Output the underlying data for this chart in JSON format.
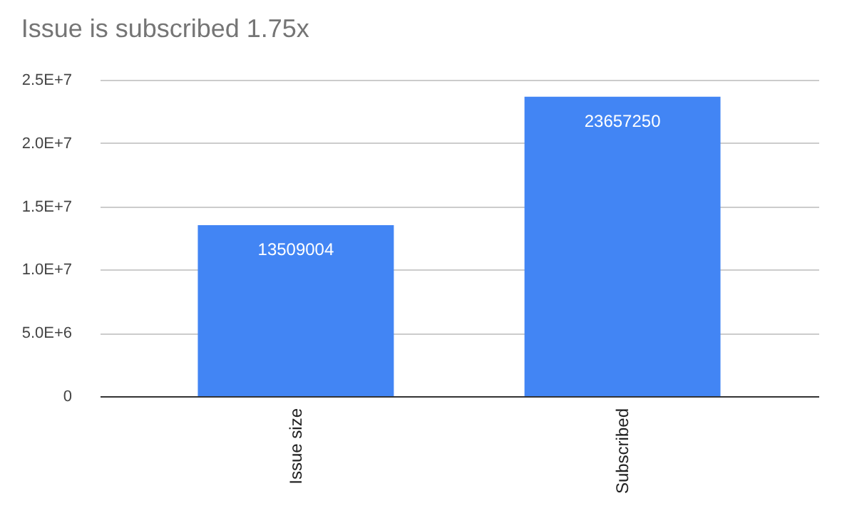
{
  "chart_data": {
    "type": "bar",
    "title": "Issue is subscribed 1.75x",
    "categories": [
      "Issue size",
      "Subscribed"
    ],
    "values": [
      13509004,
      23657250
    ],
    "color": "#4285f4",
    "ylim": [
      0,
      25000000
    ],
    "yticks": [
      {
        "value": 0,
        "label": "0"
      },
      {
        "value": 5000000,
        "label": "5.0E+6"
      },
      {
        "value": 10000000,
        "label": "1.0E+7"
      },
      {
        "value": 15000000,
        "label": "1.5E+7"
      },
      {
        "value": 20000000,
        "label": "2.0E+7"
      },
      {
        "value": 25000000,
        "label": "2.5E+7"
      }
    ],
    "grid": "y",
    "data_labels": true
  }
}
